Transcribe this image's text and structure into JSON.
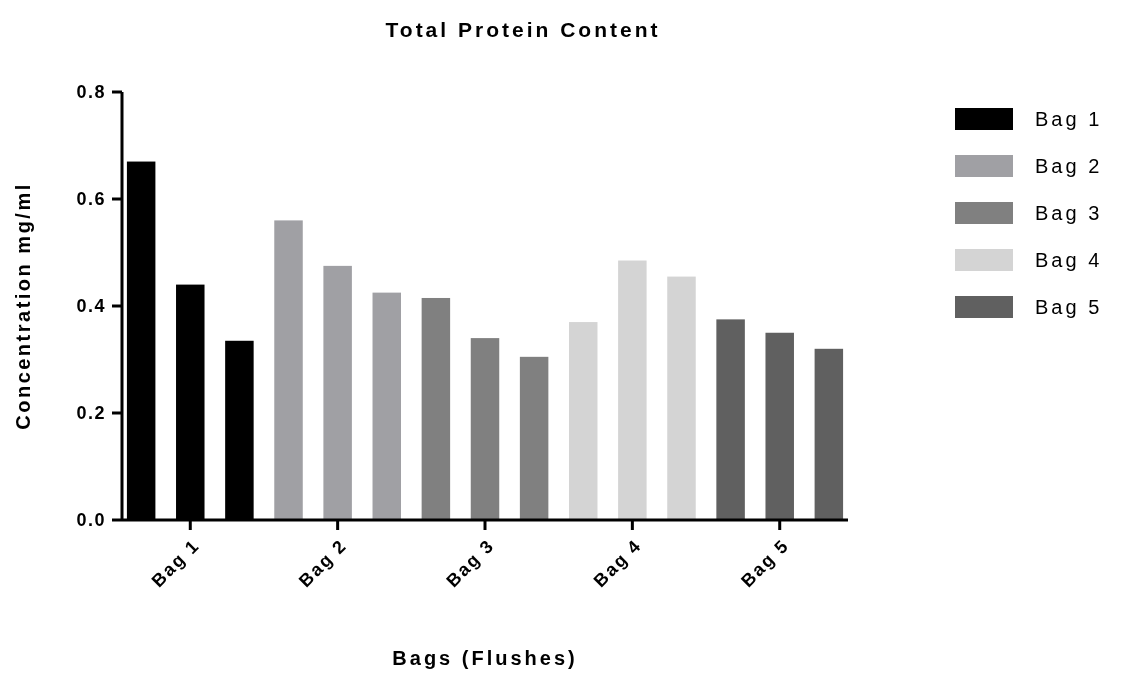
{
  "chart_data": {
    "type": "bar",
    "title": "Total Protein Content",
    "xlabel": "Bags (Flushes)",
    "ylabel": "Concentration mg/ml",
    "categories": [
      null,
      "Bag 1",
      null,
      null,
      "Bag 2",
      null,
      null,
      "Bag 3",
      null,
      null,
      "Bag 4",
      null,
      null,
      "Bag 5",
      null
    ],
    "stacked": true,
    "series": [
      {
        "name": "Bag 1",
        "color": "#000000",
        "values": [
          0.67,
          0.44,
          0.335,
          null,
          null,
          null,
          null,
          null,
          null,
          null,
          null,
          null,
          null,
          null,
          null
        ]
      },
      {
        "name": "Bag 2",
        "color": "#a0a0a4",
        "values": [
          null,
          null,
          null,
          0.56,
          0.475,
          0.425,
          null,
          null,
          null,
          null,
          null,
          null,
          null,
          null,
          null
        ]
      },
      {
        "name": "Bag 3",
        "color": "#808080",
        "values": [
          null,
          null,
          null,
          null,
          null,
          null,
          0.415,
          0.34,
          0.305,
          null,
          null,
          null,
          null,
          null,
          null
        ]
      },
      {
        "name": "Bag 4",
        "color": "#d4d4d4",
        "values": [
          null,
          null,
          null,
          null,
          null,
          null,
          null,
          null,
          null,
          0.37,
          0.485,
          0.455,
          null,
          null,
          null
        ]
      },
      {
        "name": "Bag 5",
        "color": "#606060",
        "values": [
          null,
          null,
          null,
          null,
          null,
          null,
          null,
          null,
          null,
          null,
          null,
          null,
          0.375,
          0.35,
          0.32
        ]
      }
    ],
    "ylim": [
      0,
      0.8
    ],
    "yticks": [
      {
        "value": 0,
        "label": "0.0"
      },
      {
        "value": 0.2,
        "label": "0.2"
      },
      {
        "value": 0.4,
        "label": "0.4"
      },
      {
        "value": 0.6,
        "label": "0.6"
      },
      {
        "value": 0.8,
        "label": "0.8"
      }
    ],
    "legend": "top right"
  }
}
